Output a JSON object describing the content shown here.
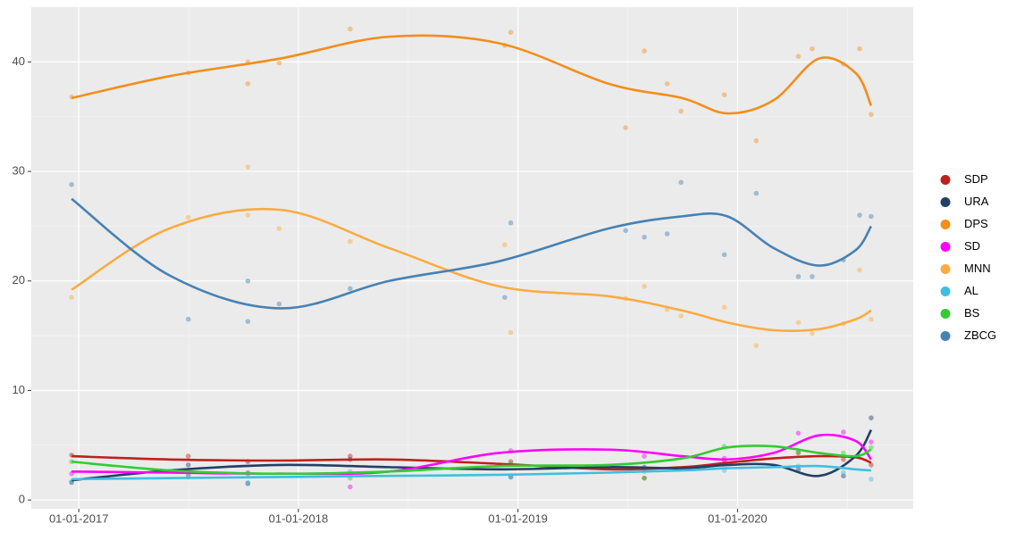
{
  "chart_data": {
    "type": "line",
    "xlim": [
      "2016-10-14",
      "2020-10-19"
    ],
    "xticks": [
      {
        "value": "2017-01-01",
        "label": "01-01-2017"
      },
      {
        "value": "2018-01-01",
        "label": "01-01-2018"
      },
      {
        "value": "2019-01-01",
        "label": "01-01-2019"
      },
      {
        "value": "2020-01-01",
        "label": "01-01-2020"
      }
    ],
    "ylim": [
      -0.8,
      45
    ],
    "yticks": [
      0,
      10,
      20,
      30,
      40
    ],
    "grid": true,
    "legend": "right",
    "x": [
      "2016-12-20",
      "2017-06-01",
      "2017-12-01",
      "2018-06-01",
      "2018-12-01",
      "2019-06-01",
      "2019-10-01",
      "2019-12-15",
      "2020-03-01",
      "2020-05-15",
      "2020-07-15",
      "2020-08-10"
    ],
    "series": [
      {
        "name": "SDP",
        "color": "#c0201c",
        "values": [
          4.0,
          3.7,
          3.6,
          3.7,
          3.3,
          2.8,
          3.0,
          3.4,
          3.8,
          4.0,
          3.9,
          3.4
        ],
        "points": {
          "x": [
            "2016-12-20",
            "2017-07-02",
            "2017-10-09",
            "2018-03-28",
            "2018-12-20",
            "2019-07-30",
            "2019-12-10",
            "2020-04-11",
            "2020-06-25",
            "2020-08-10"
          ],
          "values": [
            4.1,
            4.0,
            3.5,
            4.0,
            3.5,
            2.0,
            3.6,
            4.3,
            3.7,
            3.2
          ]
        }
      },
      {
        "name": "URA",
        "color": "#243f66",
        "values": [
          1.8,
          2.7,
          3.2,
          3.0,
          2.8,
          3.0,
          2.9,
          3.2,
          3.2,
          2.2,
          4.0,
          6.4
        ],
        "points": {
          "x": [
            "2016-12-20",
            "2017-07-02",
            "2017-10-09",
            "2018-03-28",
            "2018-12-20",
            "2019-07-30",
            "2019-12-10",
            "2020-04-11",
            "2020-06-25",
            "2020-08-10"
          ],
          "values": [
            1.6,
            3.2,
            1.5,
            3.7,
            2.1,
            3.0,
            3.3,
            2.8,
            2.2,
            7.5
          ]
        }
      },
      {
        "name": "DPS",
        "color": "#f28e1c",
        "values": [
          36.7,
          38.7,
          40.3,
          42.3,
          41.7,
          38.0,
          36.7,
          35.3,
          36.5,
          40.3,
          39.0,
          36.0
        ],
        "points": {
          "x": [
            "2016-12-20",
            "2017-07-02",
            "2017-10-09",
            "2017-10-09",
            "2017-11-30",
            "2018-03-28",
            "2018-12-10",
            "2018-12-20",
            "2019-06-29",
            "2019-07-30",
            "2019-09-06",
            "2019-09-29",
            "2019-12-10",
            "2020-02-01",
            "2020-04-11",
            "2020-05-04",
            "2020-06-25",
            "2020-07-22",
            "2020-08-10"
          ],
          "values": [
            36.8,
            39.0,
            40.0,
            38.0,
            39.9,
            43.0,
            41.5,
            42.7,
            34.0,
            41.0,
            38.0,
            35.5,
            37.0,
            32.8,
            40.5,
            41.2,
            39.8,
            41.2,
            35.2
          ]
        }
      },
      {
        "name": "SD",
        "color": "#ff00ff",
        "values": [
          2.6,
          2.5,
          2.4,
          2.6,
          4.3,
          4.6,
          4.0,
          3.7,
          4.3,
          5.9,
          5.4,
          3.7
        ],
        "points": {
          "x": [
            "2016-12-20",
            "2017-07-02",
            "2017-10-09",
            "2018-03-28",
            "2018-12-20",
            "2019-07-30",
            "2019-12-10",
            "2020-04-11",
            "2020-06-25",
            "2020-08-10"
          ],
          "values": [
            2.4,
            2.3,
            2.5,
            1.2,
            4.5,
            4.0,
            3.8,
            6.1,
            6.2,
            5.3
          ]
        }
      },
      {
        "name": "MNN",
        "color": "#fbab41",
        "values": [
          19.2,
          24.8,
          26.5,
          23.0,
          19.5,
          18.6,
          17.3,
          16.2,
          15.5,
          15.6,
          16.5,
          17.3
        ],
        "points": {
          "x": [
            "2016-12-20",
            "2017-07-02",
            "2017-10-09",
            "2017-10-09",
            "2017-11-30",
            "2018-03-28",
            "2018-12-10",
            "2018-12-20",
            "2019-06-29",
            "2019-07-30",
            "2019-09-06",
            "2019-09-29",
            "2019-12-10",
            "2020-02-01",
            "2020-04-11",
            "2020-05-04",
            "2020-06-25",
            "2020-07-22",
            "2020-08-10"
          ],
          "values": [
            18.5,
            25.8,
            30.4,
            26.0,
            24.8,
            23.6,
            23.3,
            15.3,
            18.4,
            19.5,
            17.4,
            16.8,
            17.6,
            14.1,
            16.2,
            15.2,
            16.1,
            21.0,
            16.5
          ]
        }
      },
      {
        "name": "AL",
        "color": "#3ebfe0",
        "values": [
          1.9,
          2.0,
          2.1,
          2.2,
          2.3,
          2.5,
          2.7,
          2.9,
          3.0,
          3.1,
          2.8,
          2.7
        ],
        "points": {
          "x": [
            "2016-12-20",
            "2017-07-02",
            "2017-10-09",
            "2018-03-28",
            "2018-12-20",
            "2019-07-30",
            "2019-12-10",
            "2020-04-11",
            "2020-06-25",
            "2020-08-10"
          ],
          "values": [
            1.7,
            2.1,
            1.6,
            2.6,
            2.1,
            2.6,
            2.7,
            3.1,
            2.5,
            1.9
          ]
        }
      },
      {
        "name": "BS",
        "color": "#33cc33",
        "values": [
          3.5,
          2.7,
          2.4,
          2.6,
          3.1,
          3.2,
          3.8,
          4.8,
          4.9,
          4.3,
          4.0,
          4.6
        ],
        "points": {
          "x": [
            "2016-12-20",
            "2017-07-02",
            "2017-10-09",
            "2018-03-28",
            "2018-12-20",
            "2019-07-30",
            "2019-12-10",
            "2020-04-11",
            "2020-06-25",
            "2020-08-10"
          ],
          "values": [
            3.5,
            2.5,
            2.4,
            2.0,
            3.3,
            2.0,
            4.9,
            4.4,
            4.3,
            4.8
          ]
        }
      },
      {
        "name": "ZBCG",
        "color": "#4682b4",
        "values": [
          27.5,
          20.5,
          17.5,
          20.0,
          21.8,
          24.8,
          25.9,
          25.9,
          23.0,
          21.4,
          22.8,
          25.0
        ],
        "points": {
          "x": [
            "2016-12-20",
            "2017-07-02",
            "2017-10-09",
            "2017-10-09",
            "2017-11-30",
            "2018-03-28",
            "2018-12-10",
            "2018-12-20",
            "2019-06-29",
            "2019-07-30",
            "2019-09-06",
            "2019-09-29",
            "2019-12-10",
            "2020-02-01",
            "2020-04-11",
            "2020-05-04",
            "2020-06-25",
            "2020-07-22",
            "2020-08-10"
          ],
          "values": [
            28.8,
            16.5,
            20.0,
            16.3,
            17.9,
            19.3,
            18.5,
            25.3,
            24.6,
            24.0,
            24.3,
            29.0,
            22.4,
            28.0,
            20.4,
            20.4,
            21.9,
            26.0,
            25.9
          ]
        }
      }
    ]
  }
}
